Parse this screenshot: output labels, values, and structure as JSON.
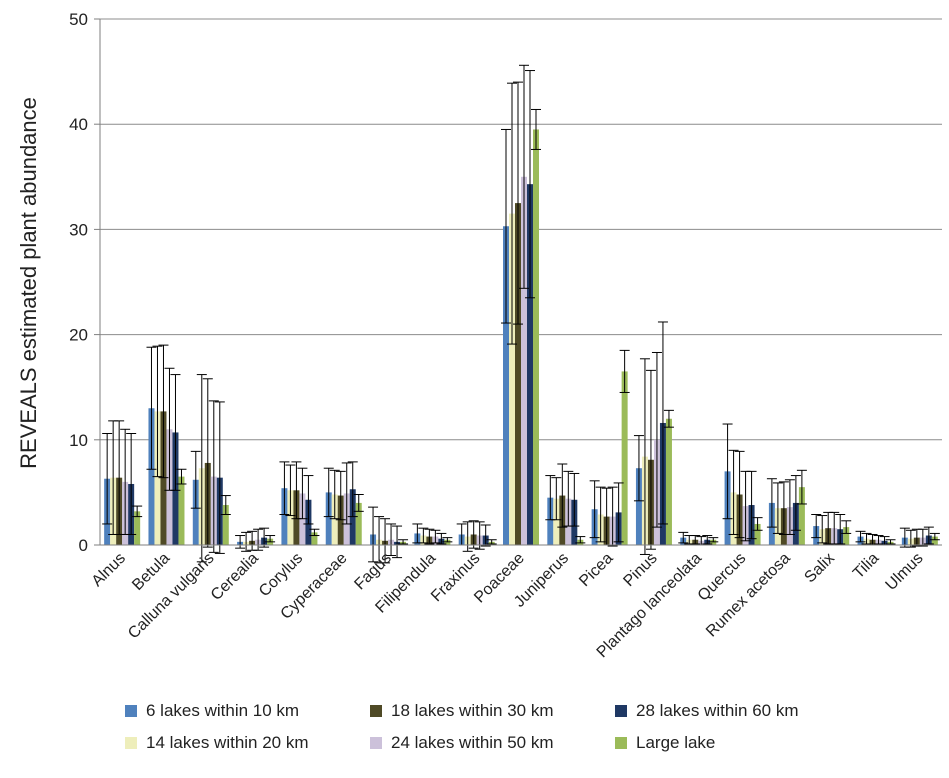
{
  "chart_data": {
    "type": "bar",
    "title": "",
    "xlabel": "",
    "ylabel": "REVEALS estimated plant abundance",
    "ylim": [
      0,
      50
    ],
    "yticks": [
      0,
      10,
      20,
      30,
      40,
      50
    ],
    "grid": true,
    "legend_position": "bottom",
    "categories": [
      "Alnus",
      "Betula",
      "Calluna vulgaris",
      "Cerealia",
      "Corylus",
      "Cyperaceae",
      "Fagus",
      "Filipendula",
      "Fraxinus",
      "Poaceae",
      "Juniperus",
      "Picea",
      "Pinus",
      "Plantago lanceolata",
      "Quercus",
      "Rumex acetosa",
      "Salix",
      "Tilia",
      "Ulmus"
    ],
    "series": [
      {
        "name": "6 lakes within 10 km",
        "color": "#4f81bd",
        "values": [
          6.3,
          13.0,
          6.2,
          0.3,
          5.4,
          5.0,
          1.0,
          1.1,
          1.0,
          30.3,
          4.5,
          3.4,
          7.3,
          0.7,
          7.0,
          4.0,
          1.8,
          0.8,
          0.7
        ],
        "errors": [
          4.3,
          5.8,
          2.7,
          0.6,
          2.5,
          2.3,
          2.6,
          0.9,
          1.0,
          9.2,
          2.1,
          2.7,
          3.1,
          0.5,
          4.5,
          2.3,
          1.1,
          0.5,
          0.9
        ]
      },
      {
        "name": "14 lakes within 20 km",
        "color": "#eeeebb",
        "values": [
          6.4,
          12.7,
          7.3,
          0.3,
          5.2,
          4.8,
          0.5,
          0.9,
          0.8,
          31.5,
          4.4,
          2.9,
          8.4,
          0.5,
          5.0,
          3.5,
          1.5,
          0.6,
          0.6
        ],
        "errors": [
          5.4,
          6.2,
          8.9,
          0.9,
          2.4,
          2.3,
          2.2,
          0.7,
          1.4,
          12.4,
          2.0,
          2.6,
          9.3,
          0.4,
          4.0,
          2.4,
          1.3,
          0.5,
          0.8
        ]
      },
      {
        "name": "18 lakes within 30 km",
        "color": "#4f4a26",
        "values": [
          6.4,
          12.7,
          7.8,
          0.4,
          5.2,
          4.7,
          0.4,
          0.8,
          1.0,
          32.5,
          4.7,
          2.7,
          8.1,
          0.5,
          4.8,
          3.5,
          1.6,
          0.5,
          0.7
        ],
        "errors": [
          5.4,
          6.3,
          8.0,
          0.9,
          2.7,
          2.3,
          2.1,
          0.7,
          1.3,
          11.5,
          3.0,
          2.7,
          8.5,
          0.4,
          4.1,
          2.5,
          1.5,
          0.5,
          0.8
        ]
      },
      {
        "name": "24 lakes within 50 km",
        "color": "#ccc1da",
        "values": [
          6.0,
          11.0,
          6.5,
          0.5,
          4.9,
          4.9,
          0.5,
          0.8,
          0.9,
          35.0,
          4.4,
          2.7,
          10.0,
          0.4,
          3.7,
          3.6,
          1.6,
          0.5,
          0.7
        ],
        "errors": [
          5.0,
          5.8,
          7.2,
          1.0,
          2.4,
          2.9,
          1.5,
          0.6,
          1.3,
          10.6,
          2.6,
          2.8,
          8.3,
          0.4,
          3.3,
          2.6,
          1.5,
          0.4,
          0.8
        ]
      },
      {
        "name": "28 lakes within 60 km",
        "color": "#1f3864",
        "values": [
          5.8,
          10.7,
          6.4,
          0.7,
          4.3,
          5.3,
          0.3,
          0.6,
          0.9,
          34.3,
          4.3,
          3.1,
          11.6,
          0.5,
          3.8,
          4.0,
          1.5,
          0.4,
          0.9
        ],
        "errors": [
          4.8,
          5.5,
          7.2,
          0.9,
          2.3,
          2.6,
          1.5,
          0.5,
          1.0,
          10.8,
          2.5,
          2.8,
          9.6,
          0.4,
          3.2,
          2.6,
          1.4,
          0.4,
          0.8
        ]
      },
      {
        "name": "Large lake",
        "color": "#9bbb59",
        "values": [
          3.2,
          6.5,
          3.8,
          0.6,
          1.2,
          4.0,
          0.3,
          0.5,
          0.3,
          39.5,
          0.5,
          16.5,
          12.0,
          0.5,
          2.0,
          5.5,
          1.7,
          0.3,
          0.8
        ],
        "errors": [
          0.5,
          0.7,
          0.9,
          0.3,
          0.3,
          0.8,
          0.2,
          0.2,
          0.2,
          1.9,
          0.3,
          2.0,
          0.8,
          0.2,
          0.6,
          1.6,
          0.6,
          0.2,
          0.3
        ]
      }
    ]
  }
}
